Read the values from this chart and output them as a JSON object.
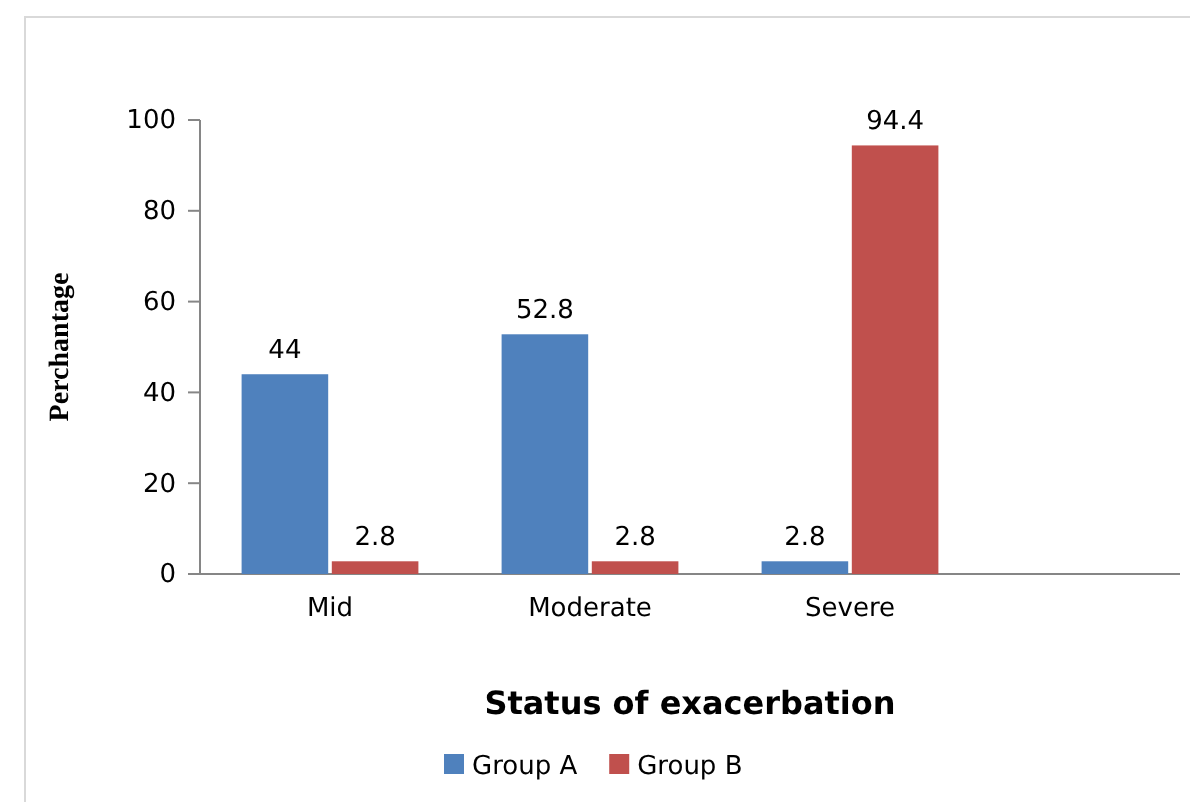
{
  "chart_data": {
    "type": "bar",
    "xlabel": "Status of exacerbation",
    "ylabel": "Perchantage",
    "categories": [
      "Mid",
      "Moderate",
      "Severe"
    ],
    "series": [
      {
        "name": "Group A",
        "color": "#4f81bd",
        "values": [
          44,
          52.8,
          2.8
        ]
      },
      {
        "name": "Group B",
        "color": "#c0504d",
        "values": [
          2.8,
          2.8,
          94.4
        ]
      }
    ],
    "ylim": [
      0,
      100
    ],
    "yticks": [
      0,
      20,
      40,
      60,
      80,
      100
    ],
    "data_labels": true,
    "legend": "bottom",
    "grid": false
  }
}
